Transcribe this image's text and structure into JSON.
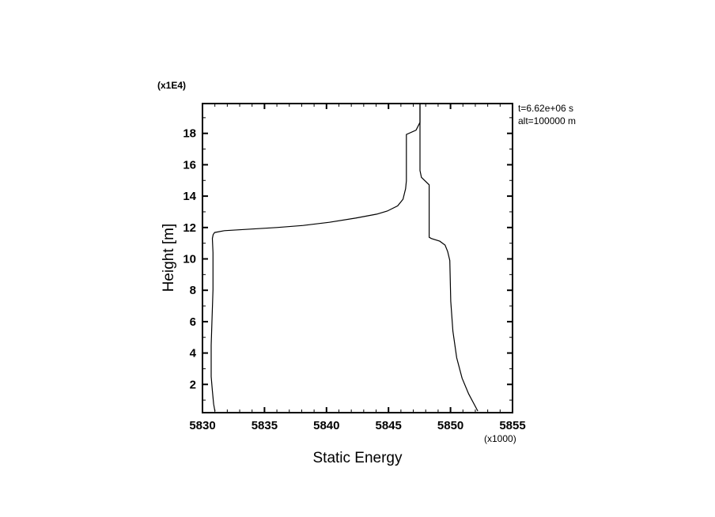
{
  "chart_data": {
    "type": "line",
    "xlabel": "Static Energy",
    "ylabel": "Height [m]",
    "x_scale_label": "(x1000)",
    "y_scale_label": "(x1E4)",
    "annotations": [
      "t=6.62e+06 s",
      "alt=100000 m"
    ],
    "xlim": [
      5830,
      5855
    ],
    "ylim": [
      0.2,
      19.9
    ],
    "xticks": [
      5830,
      5835,
      5840,
      5845,
      5850,
      5855
    ],
    "yticks": [
      2,
      4,
      6,
      8,
      10,
      12,
      14,
      16,
      18
    ],
    "grid": false,
    "color": "#000000",
    "series": [
      {
        "points": [
          [
            5831.0,
            0.3
          ],
          [
            5830.9,
            0.75
          ],
          [
            5830.8,
            1.6
          ],
          [
            5830.7,
            2.5
          ],
          [
            5830.7,
            4.5
          ],
          [
            5830.76,
            5.9
          ],
          [
            5830.85,
            8.05
          ],
          [
            5830.85,
            10.4
          ],
          [
            5830.8,
            11.3
          ],
          [
            5830.86,
            11.55
          ],
          [
            5830.98,
            11.68
          ],
          [
            5831.76,
            11.8
          ],
          [
            5833.88,
            11.9
          ],
          [
            5835.99,
            12.0
          ],
          [
            5838.12,
            12.13
          ],
          [
            5840.23,
            12.33
          ],
          [
            5842.35,
            12.6
          ],
          [
            5844.05,
            12.85
          ],
          [
            5844.9,
            13.05
          ],
          [
            5845.74,
            13.38
          ],
          [
            5846.17,
            13.8
          ],
          [
            5846.38,
            14.47
          ],
          [
            5846.44,
            14.97
          ],
          [
            5846.44,
            17.93
          ],
          [
            5847.22,
            18.2
          ],
          [
            5847.54,
            18.7
          ],
          [
            5847.54,
            19.9
          ]
        ]
      },
      {
        "points": [
          [
            5852.2,
            0.3
          ],
          [
            5851.46,
            1.4
          ],
          [
            5850.93,
            2.4
          ],
          [
            5850.5,
            3.7
          ],
          [
            5850.19,
            5.4
          ],
          [
            5850.02,
            7.3
          ],
          [
            5849.94,
            9.9
          ],
          [
            5849.87,
            10.13
          ],
          [
            5849.77,
            10.47
          ],
          [
            5849.56,
            10.88
          ],
          [
            5849.13,
            11.13
          ],
          [
            5848.45,
            11.3
          ],
          [
            5848.28,
            11.38
          ],
          [
            5848.28,
            14.72
          ],
          [
            5847.65,
            15.2
          ],
          [
            5847.54,
            15.63
          ],
          [
            5847.54,
            19.9
          ]
        ]
      }
    ]
  }
}
